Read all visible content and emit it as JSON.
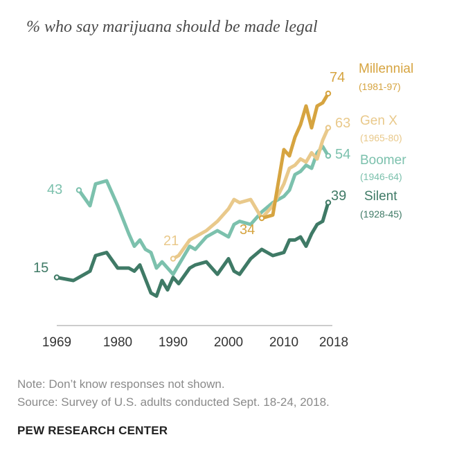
{
  "title": "% who say marijuana should be made legal",
  "notes": {
    "note": "Note: Don’t know responses not shown.",
    "source": "Source: Survey of U.S. adults conducted Sept. 18-24, 2018."
  },
  "org": "PEW RESEARCH CENTER",
  "chart_data": {
    "type": "line",
    "title": "% who say marijuana should be made legal",
    "xlabel": "",
    "ylabel": "",
    "xlim": [
      1969,
      2018
    ],
    "ylim": [
      0,
      80
    ],
    "grid": false,
    "x_ticks": [
      "1969",
      "1980",
      "1990",
      "2000",
      "2010",
      "2018"
    ],
    "x_tick_values": [
      1969,
      1980,
      1990,
      2000,
      2010,
      2018
    ],
    "series": [
      {
        "name": "Silent",
        "years": "(1928-45)",
        "color": "#3f7a66",
        "first_label": "15",
        "last_label": "39",
        "points": [
          [
            1969,
            15
          ],
          [
            1972,
            14
          ],
          [
            1975,
            17
          ],
          [
            1976,
            22
          ],
          [
            1978,
            23
          ],
          [
            1980,
            18
          ],
          [
            1982,
            18
          ],
          [
            1983,
            17
          ],
          [
            1984,
            19
          ],
          [
            1986,
            10
          ],
          [
            1987,
            9
          ],
          [
            1988,
            14
          ],
          [
            1989,
            11
          ],
          [
            1990,
            15
          ],
          [
            1991,
            13
          ],
          [
            1993,
            18
          ],
          [
            1994,
            19
          ],
          [
            1996,
            20
          ],
          [
            1998,
            16
          ],
          [
            2000,
            21
          ],
          [
            2001,
            17
          ],
          [
            2002,
            16
          ],
          [
            2004,
            21
          ],
          [
            2006,
            24
          ],
          [
            2008,
            22
          ],
          [
            2010,
            23
          ],
          [
            2011,
            27
          ],
          [
            2012,
            27
          ],
          [
            2013,
            28
          ],
          [
            2014,
            25
          ],
          [
            2015,
            29
          ],
          [
            2016,
            32
          ],
          [
            2017,
            33
          ],
          [
            2018,
            39
          ]
        ]
      },
      {
        "name": "Boomer",
        "years": "(1946-64)",
        "color": "#7cc1ad",
        "first_label": "43",
        "last_label": "54",
        "points": [
          [
            1973,
            43
          ],
          [
            1975,
            38
          ],
          [
            1976,
            45
          ],
          [
            1978,
            46
          ],
          [
            1980,
            38
          ],
          [
            1982,
            29
          ],
          [
            1983,
            25
          ],
          [
            1984,
            27
          ],
          [
            1985,
            24
          ],
          [
            1986,
            23
          ],
          [
            1987,
            18
          ],
          [
            1988,
            20
          ],
          [
            1989,
            18
          ],
          [
            1990,
            16
          ],
          [
            1991,
            19
          ],
          [
            1993,
            25
          ],
          [
            1994,
            24
          ],
          [
            1996,
            28
          ],
          [
            1998,
            30
          ],
          [
            2000,
            28
          ],
          [
            2001,
            32
          ],
          [
            2002,
            33
          ],
          [
            2004,
            32
          ],
          [
            2006,
            36
          ],
          [
            2008,
            39
          ],
          [
            2010,
            41
          ],
          [
            2011,
            43
          ],
          [
            2012,
            48
          ],
          [
            2013,
            49
          ],
          [
            2014,
            51
          ],
          [
            2015,
            50
          ],
          [
            2016,
            55
          ],
          [
            2017,
            57
          ],
          [
            2018,
            54
          ]
        ]
      },
      {
        "name": "Gen X",
        "years": "(1965-80)",
        "color": "#e9c98b",
        "first_label": "21",
        "last_label": "63",
        "points": [
          [
            1990,
            21
          ],
          [
            1991,
            22
          ],
          [
            1993,
            27
          ],
          [
            1994,
            28
          ],
          [
            1996,
            30
          ],
          [
            1998,
            33
          ],
          [
            2000,
            37
          ],
          [
            2001,
            40
          ],
          [
            2002,
            39
          ],
          [
            2004,
            40
          ],
          [
            2006,
            34
          ],
          [
            2007,
            36
          ],
          [
            2008,
            38
          ],
          [
            2010,
            45
          ],
          [
            2011,
            50
          ],
          [
            2012,
            51
          ],
          [
            2013,
            53
          ],
          [
            2014,
            52
          ],
          [
            2015,
            55
          ],
          [
            2016,
            53
          ],
          [
            2017,
            59
          ],
          [
            2018,
            63
          ]
        ]
      },
      {
        "name": "Millennial",
        "years": "(1981-97)",
        "color": "#d6a440",
        "first_label": "34",
        "last_label": "74",
        "points": [
          [
            2006,
            34
          ],
          [
            2008,
            35
          ],
          [
            2010,
            56
          ],
          [
            2011,
            54
          ],
          [
            2012,
            60
          ],
          [
            2013,
            64
          ],
          [
            2014,
            70
          ],
          [
            2015,
            63
          ],
          [
            2016,
            70
          ],
          [
            2017,
            71
          ],
          [
            2018,
            74
          ]
        ]
      }
    ]
  }
}
